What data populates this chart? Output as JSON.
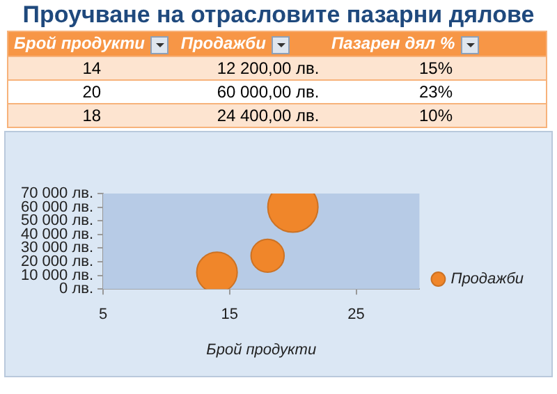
{
  "chart_data": [
    {
      "type": "other",
      "title": "Проучване на отрасловите пазарни дялове",
      "annotations": [
        "Брой продукти",
        "Продажби",
        "Пазарен дял %",
        "14",
        "12 200,00 лв.",
        "15%",
        "20",
        "60 000,00 лв.",
        "23%",
        "18",
        "24 400,00 лв.",
        "10%"
      ]
    },
    {
      "type": "bubble",
      "xlabel": "Брой продукти",
      "x": [
        14,
        20,
        18
      ],
      "series": [
        {
          "name": "Продажби",
          "color": "#f0862a",
          "values": [
            12200,
            60000,
            24400
          ],
          "sizes": [
            0.652,
            1,
            0.435
          ]
        }
      ],
      "xlim": [
        5,
        30
      ],
      "xticks": [
        5,
        15,
        25
      ],
      "ylim": [
        0,
        70000
      ],
      "yticks": [
        {
          "value": 0,
          "label": "0 лв."
        },
        {
          "value": 10000,
          "label": "10 000 лв."
        },
        {
          "value": 20000,
          "label": "20 000 лв."
        },
        {
          "value": 30000,
          "label": "30 000 лв."
        },
        {
          "value": 40000,
          "label": "40 000 лв."
        },
        {
          "value": 50000,
          "label": "50 000 лв."
        },
        {
          "value": 60000,
          "label": "60 000 лв."
        },
        {
          "value": 70000,
          "label": "70 000 лв."
        }
      ],
      "legend": "right",
      "grid": false
    }
  ]
}
